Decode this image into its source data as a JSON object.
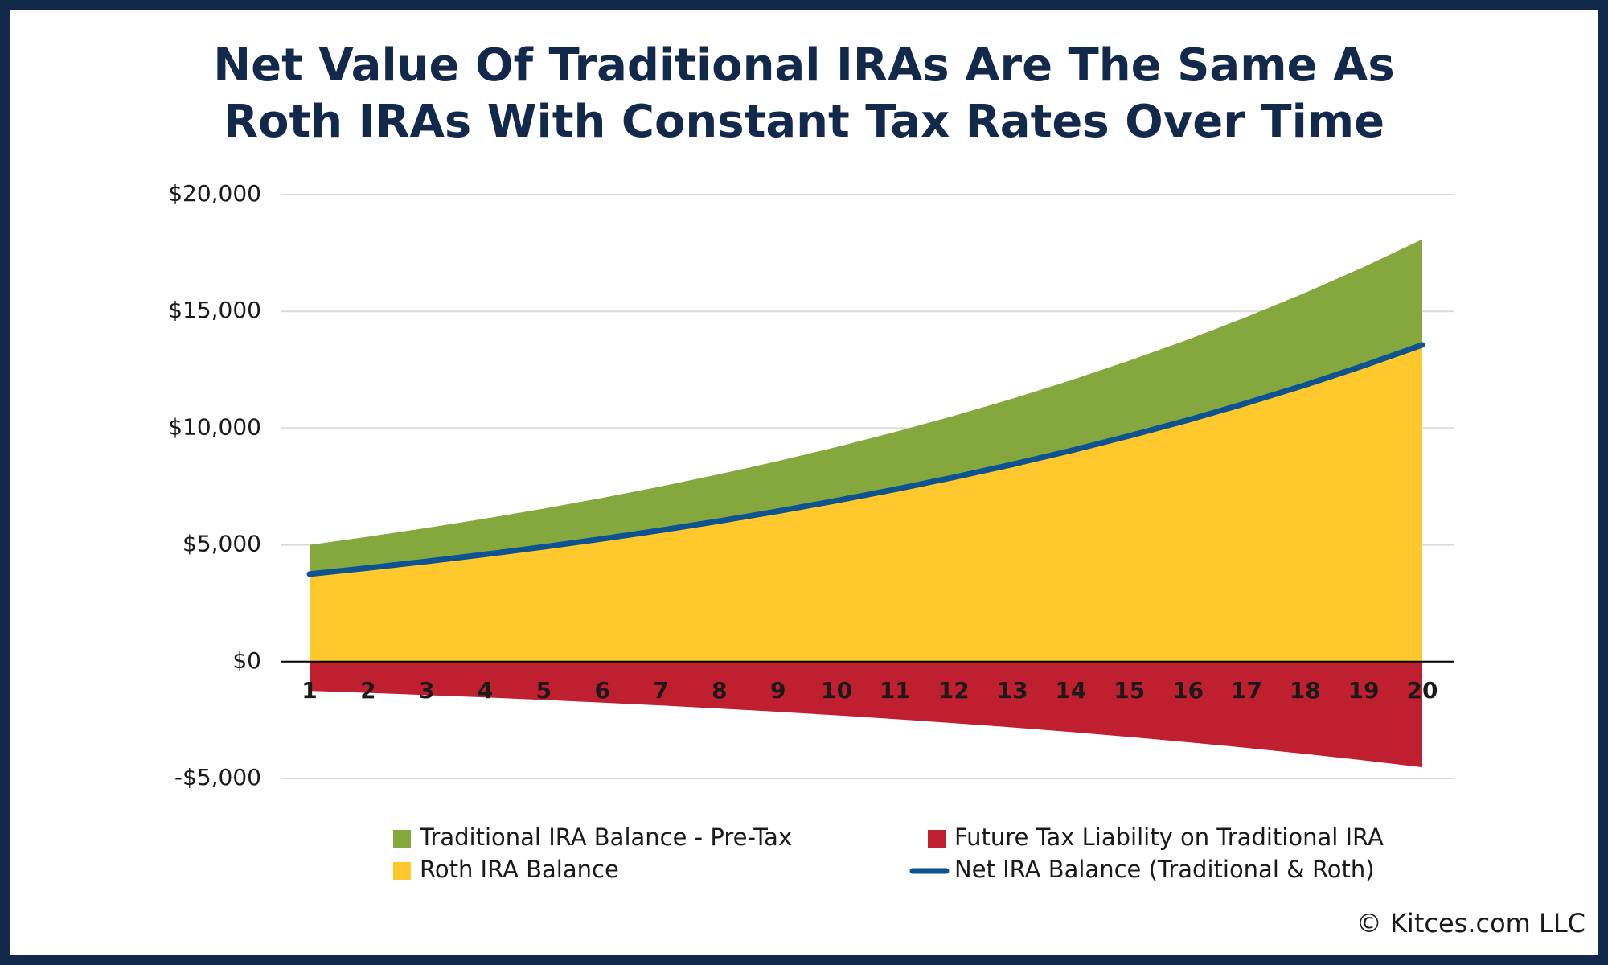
{
  "chart_data": {
    "type": "area",
    "title": [
      "Net Value Of Traditional IRAs Are The Same As",
      "Roth IRAs With Constant Tax Rates Over Time"
    ],
    "categories": [
      "1",
      "2",
      "3",
      "4",
      "5",
      "6",
      "7",
      "8",
      "9",
      "10",
      "11",
      "12",
      "13",
      "14",
      "15",
      "16",
      "17",
      "18",
      "19",
      "20"
    ],
    "series": [
      {
        "name": "Traditional IRA Balance - Pre-Tax",
        "color": "#84a83e",
        "type": "area",
        "values": [
          5000,
          5350,
          5725,
          6125,
          6554,
          7013,
          7504,
          8029,
          8591,
          9192,
          9836,
          10524,
          11261,
          12049,
          12893,
          13795,
          14761,
          15794,
          16900,
          18083
        ]
      },
      {
        "name": "Future Tax Liability on Traditional IRA",
        "color": "#c01f2f",
        "type": "area",
        "values": [
          -1250,
          -1338,
          -1431,
          -1531,
          -1639,
          -1753,
          -1876,
          -2007,
          -2148,
          -2298,
          -2459,
          -2631,
          -2815,
          -3012,
          -3223,
          -3449,
          -3690,
          -3949,
          -4225,
          -4521
        ]
      },
      {
        "name": "Roth IRA Balance",
        "color": "#ffc92e",
        "type": "area",
        "values": [
          3750,
          4013,
          4294,
          4594,
          4916,
          5260,
          5628,
          6022,
          6443,
          6894,
          7377,
          7893,
          8446,
          9037,
          9670,
          10346,
          11071,
          11846,
          12675,
          13562
        ]
      },
      {
        "name": "Net IRA Balance (Traditional & Roth)",
        "color": "#0d5291",
        "type": "line",
        "values": [
          3750,
          4013,
          4294,
          4594,
          4916,
          5260,
          5628,
          6022,
          6443,
          6894,
          7377,
          7893,
          8446,
          9037,
          9670,
          10346,
          11071,
          11846,
          12675,
          13562
        ]
      }
    ],
    "ylim": [
      -5000,
      20000
    ],
    "yticks": [
      {
        "value": -5000,
        "label": "-$5,000"
      },
      {
        "value": 0,
        "label": "$0"
      },
      {
        "value": 5000,
        "label": "$5,000"
      },
      {
        "value": 10000,
        "label": "$10,000"
      },
      {
        "value": 15000,
        "label": "$15,000"
      },
      {
        "value": 20000,
        "label": "$20,000"
      }
    ],
    "grid": true,
    "source": "© Kitces.com LLC"
  }
}
